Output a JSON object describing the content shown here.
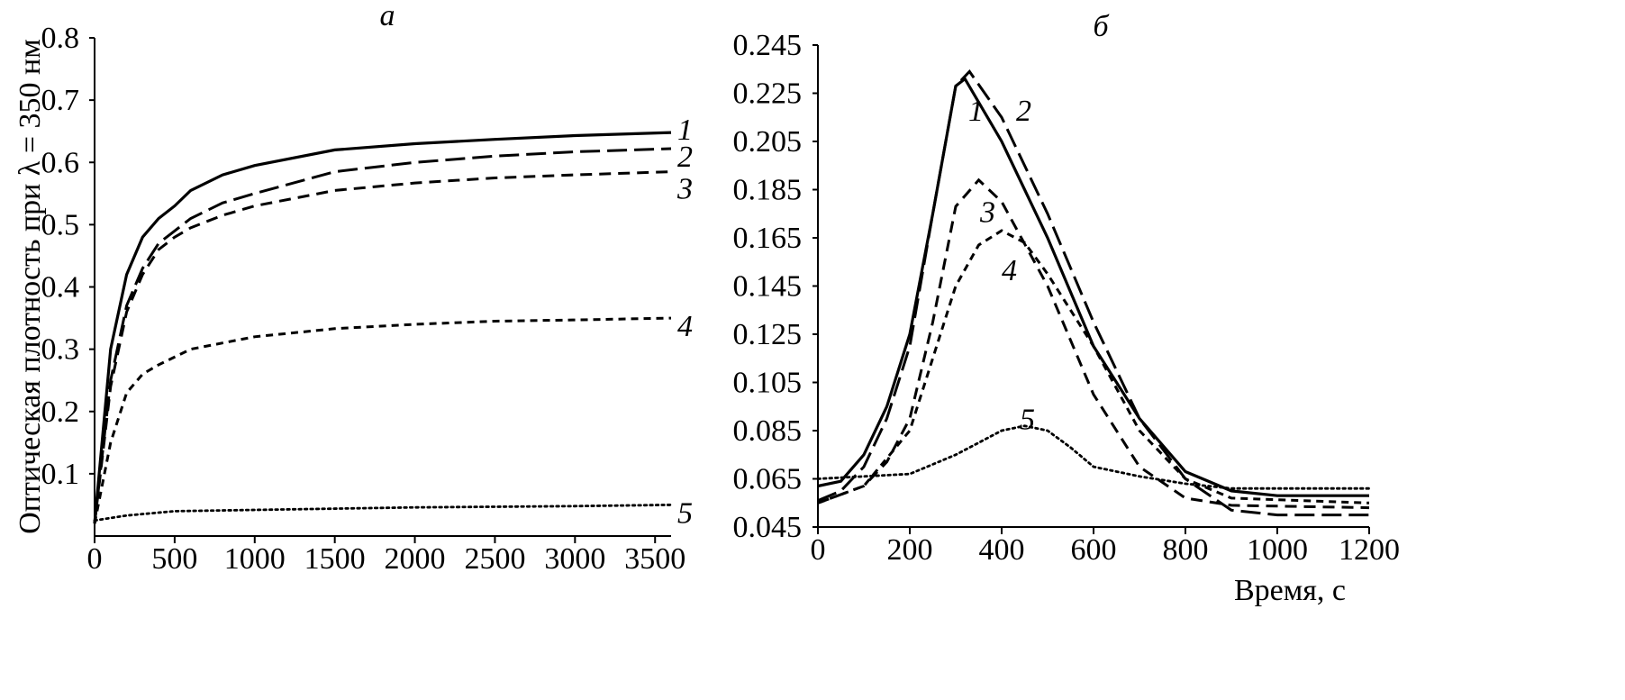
{
  "chart_data": [
    {
      "type": "line",
      "panel_label": "а",
      "title": "",
      "xlabel": "",
      "ylabel": "Оптическая плотность при λ = 350 нм",
      "xlim": [
        0,
        3600
      ],
      "ylim": [
        0,
        0.8
      ],
      "xticks": [
        0,
        500,
        1000,
        1500,
        2000,
        2500,
        3000,
        3500
      ],
      "yticks": [
        0.1,
        0.2,
        0.3,
        0.4,
        0.5,
        0.6,
        0.7,
        0.8
      ],
      "xtick_labels": [
        "0",
        "500",
        "1000",
        "1500",
        "2000",
        "2500",
        "3000",
        "3500"
      ],
      "ytick_labels": [
        "0.1",
        "0.2",
        "0.3",
        "0.4",
        "0.5",
        "0.6",
        "0.7",
        "0.8"
      ],
      "grid": false,
      "series": [
        {
          "name": "1",
          "style": "solid",
          "x": [
            0,
            100,
            200,
            300,
            400,
            500,
            600,
            800,
            1000,
            1500,
            2000,
            2500,
            3000,
            3600
          ],
          "y": [
            0.02,
            0.3,
            0.42,
            0.48,
            0.51,
            0.53,
            0.555,
            0.58,
            0.595,
            0.62,
            0.63,
            0.637,
            0.643,
            0.648
          ]
        },
        {
          "name": "2",
          "style": "long-dash",
          "x": [
            0,
            100,
            200,
            300,
            400,
            500,
            600,
            800,
            1000,
            1500,
            2000,
            2500,
            3000,
            3600
          ],
          "y": [
            0.02,
            0.25,
            0.37,
            0.43,
            0.47,
            0.49,
            0.51,
            0.535,
            0.55,
            0.585,
            0.6,
            0.61,
            0.617,
            0.622
          ]
        },
        {
          "name": "3",
          "style": "dash",
          "x": [
            0,
            100,
            200,
            300,
            400,
            500,
            600,
            800,
            1000,
            1500,
            2000,
            2500,
            3000,
            3600
          ],
          "y": [
            0.02,
            0.24,
            0.36,
            0.42,
            0.46,
            0.48,
            0.495,
            0.515,
            0.53,
            0.555,
            0.567,
            0.575,
            0.58,
            0.585
          ]
        },
        {
          "name": "4",
          "style": "short-dash",
          "x": [
            0,
            100,
            200,
            300,
            400,
            600,
            800,
            1000,
            1500,
            2000,
            2500,
            3000,
            3600
          ],
          "y": [
            0.02,
            0.15,
            0.23,
            0.26,
            0.275,
            0.3,
            0.31,
            0.32,
            0.333,
            0.34,
            0.345,
            0.347,
            0.35
          ]
        },
        {
          "name": "5",
          "style": "dot",
          "x": [
            0,
            200,
            500,
            1000,
            2000,
            3000,
            3600
          ],
          "y": [
            0.025,
            0.033,
            0.04,
            0.042,
            0.046,
            0.048,
            0.05
          ]
        }
      ]
    },
    {
      "type": "line",
      "panel_label": "б",
      "title": "",
      "xlabel": "Время, с",
      "ylabel": "",
      "xlim": [
        0,
        1200
      ],
      "ylim": [
        0.045,
        0.245
      ],
      "xticks": [
        0,
        200,
        400,
        600,
        800,
        1000,
        1200
      ],
      "yticks": [
        0.045,
        0.065,
        0.085,
        0.105,
        0.125,
        0.145,
        0.165,
        0.185,
        0.205,
        0.225,
        0.245
      ],
      "xtick_labels": [
        "0",
        "200",
        "400",
        "600",
        "800",
        "1000",
        "1200"
      ],
      "ytick_labels": [
        "0.045",
        "0.065",
        "0.085",
        "0.105",
        "0.125",
        "0.145",
        "0.165",
        "0.185",
        "0.205",
        "0.225",
        "0.245"
      ],
      "grid": false,
      "series": [
        {
          "name": "1",
          "style": "solid",
          "x": [
            0,
            50,
            100,
            150,
            200,
            250,
            300,
            320,
            400,
            500,
            600,
            700,
            800,
            900,
            1000,
            1200
          ],
          "y": [
            0.062,
            0.064,
            0.075,
            0.095,
            0.125,
            0.175,
            0.228,
            0.231,
            0.205,
            0.165,
            0.12,
            0.09,
            0.068,
            0.06,
            0.058,
            0.058
          ]
        },
        {
          "name": "2",
          "style": "long-dash",
          "x": [
            0,
            50,
            100,
            150,
            200,
            250,
            300,
            330,
            400,
            500,
            600,
            700,
            800,
            900,
            1000,
            1200
          ],
          "y": [
            0.056,
            0.06,
            0.07,
            0.09,
            0.12,
            0.175,
            0.228,
            0.234,
            0.215,
            0.175,
            0.13,
            0.09,
            0.065,
            0.052,
            0.05,
            0.05
          ]
        },
        {
          "name": "3",
          "style": "dash",
          "x": [
            0,
            100,
            150,
            200,
            250,
            300,
            350,
            400,
            500,
            600,
            700,
            800,
            900,
            1200
          ],
          "y": [
            0.055,
            0.062,
            0.072,
            0.09,
            0.13,
            0.178,
            0.189,
            0.18,
            0.145,
            0.1,
            0.07,
            0.057,
            0.054,
            0.053
          ]
        },
        {
          "name": "4",
          "style": "short-dash",
          "x": [
            0,
            100,
            200,
            250,
            300,
            350,
            400,
            450,
            500,
            600,
            700,
            800,
            900,
            1200
          ],
          "y": [
            0.055,
            0.062,
            0.085,
            0.115,
            0.145,
            0.162,
            0.168,
            0.163,
            0.15,
            0.12,
            0.085,
            0.065,
            0.057,
            0.055
          ]
        },
        {
          "name": "5",
          "style": "dot",
          "x": [
            0,
            100,
            200,
            300,
            400,
            450,
            500,
            550,
            600,
            700,
            800,
            900,
            1200
          ],
          "y": [
            0.065,
            0.066,
            0.067,
            0.075,
            0.085,
            0.087,
            0.085,
            0.078,
            0.07,
            0.066,
            0.063,
            0.061,
            0.061
          ]
        }
      ]
    }
  ]
}
